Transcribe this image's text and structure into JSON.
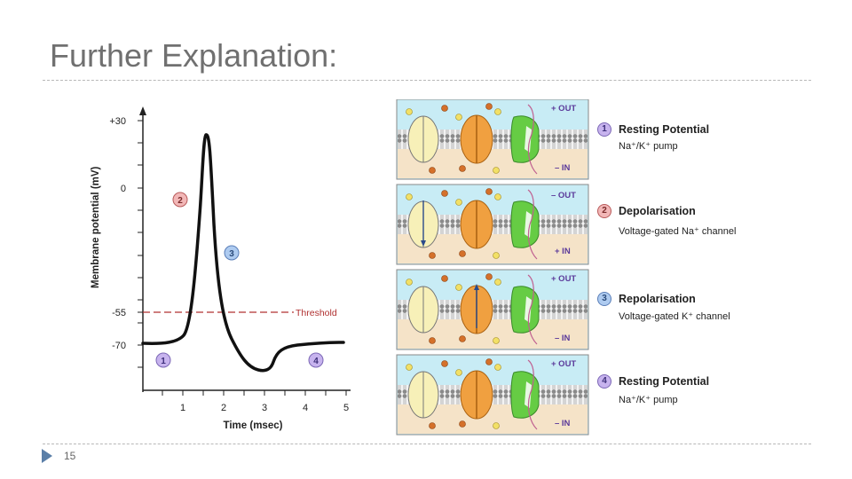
{
  "slide": {
    "title": "Further Explanation:",
    "number": "15"
  },
  "graph": {
    "ylabel": "Membrane potential (mV)",
    "xlabel": "Time (msec)",
    "y_ticks": [
      "+30",
      "0",
      "-55",
      "-70"
    ],
    "x_ticks": [
      "1",
      "2",
      "3",
      "4",
      "5"
    ],
    "threshold_label": "Threshold",
    "markers": [
      "1",
      "2",
      "3",
      "4"
    ]
  },
  "panels": [
    {
      "top_label": "+ OUT",
      "bottom_label": "– IN"
    },
    {
      "top_label": "– OUT",
      "bottom_label": "+ IN"
    },
    {
      "top_label": "+ OUT",
      "bottom_label": "– IN"
    },
    {
      "top_label": "+ OUT",
      "bottom_label": "– IN"
    }
  ],
  "stages": [
    {
      "num": "1",
      "title": "Resting Potential",
      "sub": "Na⁺/K⁺ pump"
    },
    {
      "num": "2",
      "title": "Depolarisation",
      "sub": "Voltage-gated Na⁺ channel"
    },
    {
      "num": "3",
      "title": "Repolarisation",
      "sub": "Voltage-gated K⁺ channel"
    },
    {
      "num": "4",
      "title": "Resting Potential",
      "sub": "Na⁺/K⁺ pump"
    }
  ],
  "colors": {
    "title": "#707070",
    "trace": "#111111",
    "threshold": "#b03030",
    "marker_fill": "#c7b3ee",
    "marker_fill_alt": "#aecbf0",
    "extracellular": "#c8ecf5",
    "intracellular": "#f5e3c8",
    "pump": "#f7f0b8",
    "na_channel": "#f0a040",
    "k_channel": "#66cc44",
    "sign_label": "#5b3a9a"
  }
}
